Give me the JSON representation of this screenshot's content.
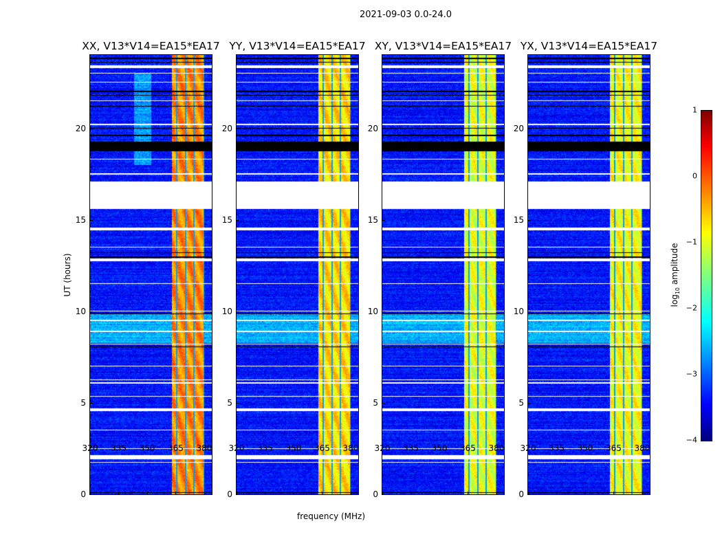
{
  "chart_data": {
    "type": "heatmap",
    "title": "2021-09-03 0.0-24.0",
    "xlabel": "frequency (MHz)",
    "ylabel": "UT (hours)",
    "xlim": [
      320,
      384
    ],
    "ylim": [
      0,
      24
    ],
    "xticks": [
      "320",
      "335",
      "350",
      "365",
      "380"
    ],
    "yticks": [
      "0",
      "5",
      "10",
      "15",
      "20"
    ],
    "panels": [
      {
        "title": "XX, V13*V14=EA15*EA17",
        "band_level": -0.3
      },
      {
        "title": "YY, V13*V14=EA15*EA17",
        "band_level": -0.7
      },
      {
        "title": "XY, V13*V14=EA15*EA17",
        "band_level": -1.0
      },
      {
        "title": "YX, V13*V14=EA15*EA17",
        "band_level": -0.9
      }
    ],
    "strong_band_mhz": [
      363,
      380
    ],
    "background_level": -3.3,
    "flagged_hours_white": [
      [
        15.6,
        17.1
      ]
    ],
    "flagged_hours_black": [
      [
        18.75,
        19.3
      ]
    ],
    "colorbar": {
      "label_main": "log",
      "label_sub": "10",
      "label_rest": " amplitude",
      "range": [
        -4,
        1
      ],
      "ticks": [
        "1",
        "0",
        "−1",
        "−2",
        "−3",
        "−4"
      ],
      "colormap": "jet"
    }
  }
}
